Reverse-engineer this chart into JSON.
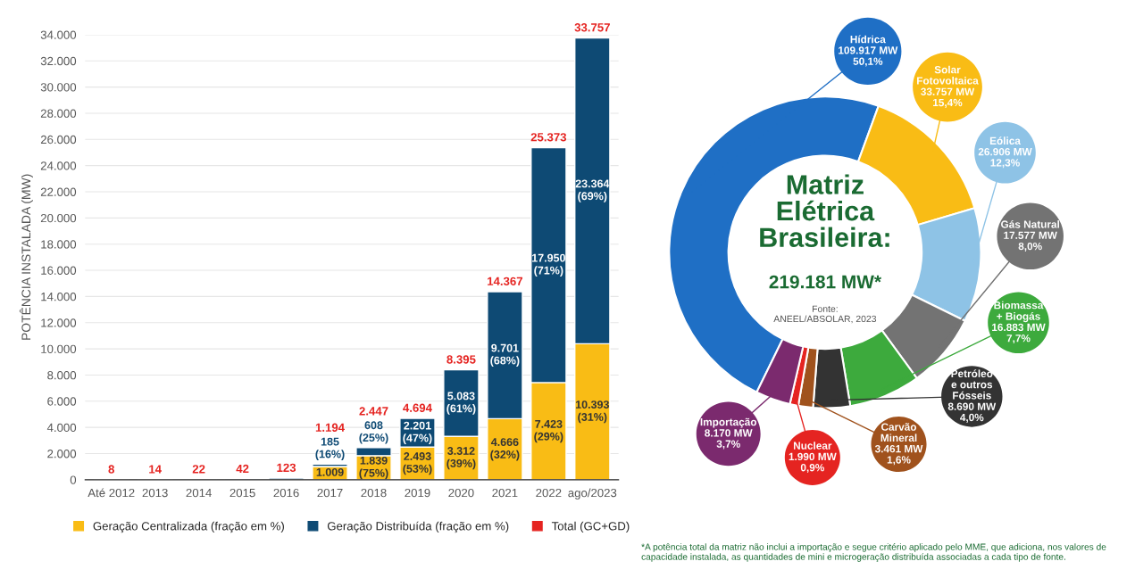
{
  "chart_data": [
    {
      "type": "bar",
      "stacked": true,
      "ylabel": "POTÊNCIA INSTALADA (MW)",
      "categories": [
        "Até 2012",
        "2013",
        "2014",
        "2015",
        "2016",
        "2017",
        "2018",
        "2019",
        "2020",
        "2021",
        "2022",
        "ago/2023"
      ],
      "series": [
        {
          "name": "Geração Centralizada (fração em %)",
          "color": "#f9bc15",
          "values": [
            null,
            null,
            null,
            null,
            null,
            1009,
            1839,
            2493,
            3312,
            4666,
            7423,
            10393
          ],
          "value_labels": [
            null,
            null,
            null,
            null,
            null,
            "1.009",
            "1.839\n(75%)",
            "2.493\n(53%)",
            "3.312\n(39%)",
            "4.666\n(32%)",
            "7.423\n(29%)",
            "10.393\n(31%)"
          ]
        },
        {
          "name": "Geração Distribuída (fração em %)",
          "color": "#0e4a74",
          "values": [
            8,
            14,
            22,
            42,
            123,
            185,
            608,
            2201,
            5083,
            9701,
            17950,
            23364
          ],
          "value_labels": [
            null,
            null,
            null,
            null,
            null,
            "185\n(16%)",
            "608\n(25%)",
            "2.201\n(47%)",
            "5.083\n(61%)",
            "9.701\n(68%)",
            "17.950\n(71%)",
            "23.364\n(69%)"
          ]
        }
      ],
      "totals": [
        "8",
        "14",
        "22",
        "42",
        "123",
        "1.194",
        "2.447",
        "4.694",
        "8.395",
        "14.367",
        "25.373",
        "33.757"
      ],
      "annotations": [
        "Total (GC+GD)"
      ],
      "ylim": [
        0,
        34000
      ],
      "yticks": [
        {
          "value": 0,
          "label": "0"
        },
        {
          "value": 2000,
          "label": "2.000"
        },
        {
          "value": 4000,
          "label": "4.000"
        },
        {
          "value": 6000,
          "label": "6.000"
        },
        {
          "value": 8000,
          "label": "8.000"
        },
        {
          "value": 10000,
          "label": "10.000"
        },
        {
          "value": 12000,
          "label": "12.000"
        },
        {
          "value": 14000,
          "label": "14.000"
        },
        {
          "value": 16000,
          "label": "16.000"
        },
        {
          "value": 18000,
          "label": "18.000"
        },
        {
          "value": 20000,
          "label": "20.000"
        },
        {
          "value": 22000,
          "label": "22.000"
        },
        {
          "value": 24000,
          "label": "24.000"
        },
        {
          "value": 26000,
          "label": "26.000"
        },
        {
          "value": 28000,
          "label": "28.000"
        },
        {
          "value": 30000,
          "label": "30.000"
        },
        {
          "value": 32000,
          "label": "32.000"
        },
        {
          "value": 34000,
          "label": "34.000"
        }
      ],
      "grid": "y",
      "legend": "bottom"
    },
    {
      "type": "donut",
      "title": "Matriz\nElétrica\nBrasileira:",
      "subtitle": "219.181 MW*",
      "categories": [
        "Hídrica",
        "Solar\nFotovoltaica",
        "Eólica",
        "Gás Natural",
        "Biomassa\n+ Biogás",
        "Petróleo\ne outros\nFósseis",
        "Carvão\nMineral",
        "Nuclear",
        "Importação"
      ],
      "values": [
        109917,
        33757,
        26906,
        17577,
        16883,
        8690,
        3461,
        1990,
        8170
      ],
      "value_labels": [
        "109.917 MW\n50,1%",
        "33.757 MW\n15,4%",
        "26.906 MW\n12,3%",
        "17.577 MW\n8,0%",
        "16.883 MW\n7,7%",
        "8.690 MW\n4,0%",
        "3.461 MW\n1,6%",
        "1.990 MW\n0,9%",
        "8.170 MW\n3,7%"
      ],
      "colors": [
        "#1f6fc5",
        "#f9bc15",
        "#8ec3e6",
        "#737373",
        "#3daa3d",
        "#333333",
        "#a0521d",
        "#e52421",
        "#7b2a6e"
      ],
      "annotations": [
        "Fonte:\nANEEL/ABSOLAR, 2023",
        "*A potência total da matriz não inclui a importação e segue critério aplicado pelo MME, que adiciona, nos valores de capacidade instalada, as quantidades de mini e microgeração distribuída associadas a cada tipo de fonte."
      ]
    }
  ]
}
